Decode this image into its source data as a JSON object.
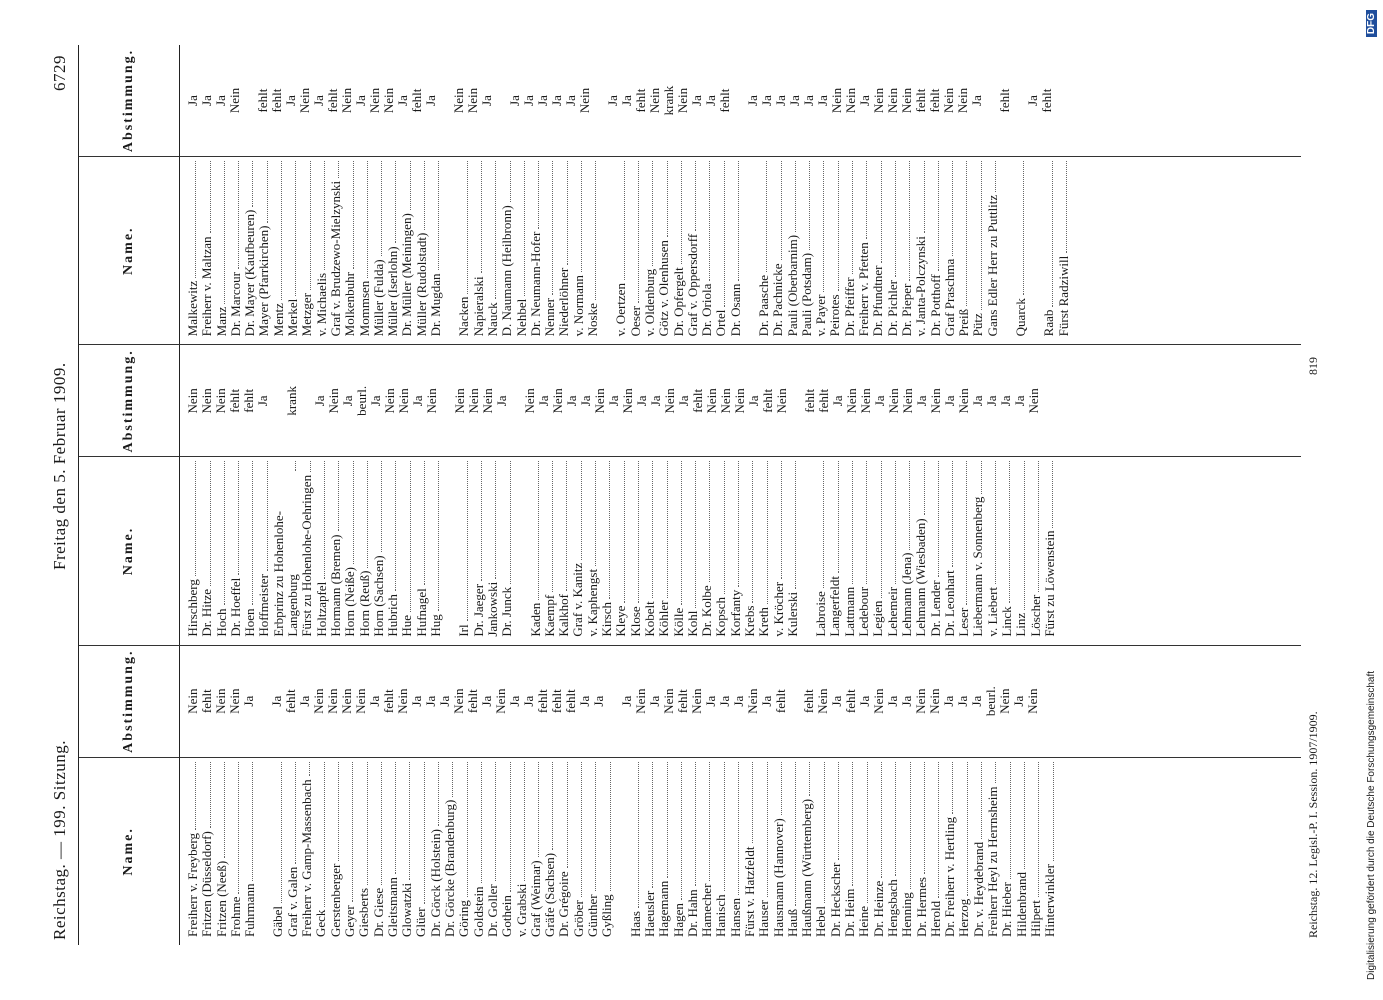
{
  "header": {
    "left": "Reichstag. — 199. Sitzung.",
    "center": "Freitag den 5. Februar 1909.",
    "page": "6729"
  },
  "column_headers": {
    "name": "Name.",
    "vote": "Abstimmung."
  },
  "columns": [
    {
      "groups": [
        {
          "rows": [
            {
              "name": "Freiherr v. Freyberg",
              "vote": "Nein"
            },
            {
              "name": "Fritzen (Düsseldorf)",
              "vote": "fehlt"
            },
            {
              "name": "Fritzen (Neeß)",
              "vote": "Nein"
            },
            {
              "name": "Frohme",
              "vote": "Nein"
            },
            {
              "name": "Fuhrmann",
              "vote": "Ja"
            }
          ]
        },
        {
          "rows": [
            {
              "name": "Gäbel",
              "vote": "Ja"
            },
            {
              "name": "Graf v. Galen",
              "vote": "fehlt"
            },
            {
              "name": "Freiherr v. Gamp-Massenbach",
              "vote": "Ja"
            },
            {
              "name": "Geck",
              "vote": "Nein"
            },
            {
              "name": "Gerstenberger",
              "vote": "Nein"
            },
            {
              "name": "Geyer",
              "vote": "Nein"
            },
            {
              "name": "Giesberts",
              "vote": "Nein"
            },
            {
              "name": "Dr. Giese",
              "vote": "Ja"
            },
            {
              "name": "Gleitsmann",
              "vote": "fehlt"
            },
            {
              "name": "Glowatzki",
              "vote": "Nein"
            },
            {
              "name": "Glüer",
              "vote": "Ja"
            },
            {
              "name": "Dr. Görck (Holstein)",
              "vote": "Ja"
            },
            {
              "name": "Dr. Görcke (Brandenburg)",
              "vote": "Ja"
            },
            {
              "name": "Göring",
              "vote": "Nein"
            },
            {
              "name": "Goldstein",
              "vote": "fehlt"
            },
            {
              "name": "Dr. Goller",
              "vote": "Ja"
            },
            {
              "name": "Gothein",
              "vote": "Nein"
            },
            {
              "name": "v. Grabski",
              "vote": "Ja"
            },
            {
              "name": "Graf (Weimar)",
              "vote": "Ja"
            },
            {
              "name": "Gräfe (Sachsen)",
              "vote": "fehlt"
            },
            {
              "name": "Dr. Grégoire",
              "vote": "fehlt"
            },
            {
              "name": "Gröber",
              "vote": "fehlt"
            },
            {
              "name": "Günther",
              "vote": "Ja"
            },
            {
              "name": "Gyßling",
              "vote": "Ja"
            }
          ]
        },
        {
          "rows": [
            {
              "name": "Haas",
              "vote": "Ja"
            },
            {
              "name": "Haeusler",
              "vote": "Nein"
            },
            {
              "name": "Hagemann",
              "vote": "Ja"
            },
            {
              "name": "Hagen",
              "vote": "Nein"
            },
            {
              "name": "Dr. Hahn",
              "vote": "fehlt"
            },
            {
              "name": "Hamecher",
              "vote": "Nein"
            },
            {
              "name": "Hanisch",
              "vote": "Ja"
            },
            {
              "name": "Hansen",
              "vote": "Ja"
            },
            {
              "name": "Fürst v. Hatzfeldt",
              "vote": "Ja"
            },
            {
              "name": "Hauser",
              "vote": "Nein"
            },
            {
              "name": "Hausmann (Hannover)",
              "vote": "Ja"
            },
            {
              "name": "Hauß",
              "vote": "fehlt"
            },
            {
              "name": "Haußmann (Württemberg)"
            },
            {
              "name": "Hebel",
              "vote": "fehlt"
            },
            {
              "name": "Dr. Heckscher",
              "vote": "Nein"
            },
            {
              "name": "Dr. Heim",
              "vote": "Ja"
            },
            {
              "name": "Heine",
              "vote": "fehlt"
            },
            {
              "name": "Dr. Heinze",
              "vote": "Ja"
            },
            {
              "name": "Hengsbach",
              "vote": "Nein"
            },
            {
              "name": "Henning",
              "vote": "Ja"
            },
            {
              "name": "Dr. Hermes",
              "vote": "Ja"
            },
            {
              "name": "Herold",
              "vote": "Nein"
            },
            {
              "name": "Dr. Freiherr v. Hertling",
              "vote": "Nein"
            },
            {
              "name": "Herzog",
              "vote": "Ja"
            },
            {
              "name": "Dr. v. Heydebrand",
              "vote": "Ja"
            },
            {
              "name": "Freiherr Heyl zu Herrnsheim",
              "vote": "Ja"
            },
            {
              "name": "Dr. Hieber",
              "vote": "beurl."
            },
            {
              "name": "Hildenbrand",
              "vote": "Nein"
            },
            {
              "name": "Hilpert",
              "vote": "Ja"
            },
            {
              "name": "Hinterwinkler",
              "vote": "Nein"
            }
          ]
        }
      ]
    },
    {
      "groups": [
        {
          "rows": [
            {
              "name": "Hirschberg",
              "vote": "Nein"
            },
            {
              "name": "Dr. Hitze",
              "vote": "Nein"
            },
            {
              "name": "Hoch",
              "vote": "Nein"
            },
            {
              "name": "Dr. Hoeffel",
              "vote": "fehlt"
            },
            {
              "name": "Hoen",
              "vote": "fehlt"
            },
            {
              "name": "Hoffmeister",
              "vote": "Ja"
            },
            {
              "name": "Erbprinz zu Hohenlohe-Langenburg",
              "vote": "krank"
            },
            {
              "name": "Fürst zu Hohenlohe-Oehringen"
            },
            {
              "name": "Holtzapfel",
              "vote": "Ja"
            },
            {
              "name": "Hormann (Bremen)",
              "vote": "Nein"
            },
            {
              "name": "Horn (Neiße)",
              "vote": "Ja"
            },
            {
              "name": "Horn (Reuß)",
              "vote": "beurl."
            },
            {
              "name": "Horn (Sachsen)",
              "vote": "Ja"
            },
            {
              "name": "Hubrich",
              "vote": "Nein"
            },
            {
              "name": "Hue",
              "vote": "Nein"
            },
            {
              "name": "Hufnagel",
              "vote": "Ja"
            },
            {
              "name": "Hug",
              "vote": "Nein"
            }
          ]
        },
        {
          "rows": [
            {
              "name": "Irl",
              "vote": "Nein"
            },
            {
              "name": "Dr. Jaeger",
              "vote": "Nein"
            },
            {
              "name": "Jankowski",
              "vote": "Nein"
            },
            {
              "name": "Dr. Junck",
              "vote": "Ja"
            }
          ]
        },
        {
          "rows": [
            {
              "name": "Kaden",
              "vote": "Nein"
            },
            {
              "name": "Kaempf",
              "vote": "Ja"
            },
            {
              "name": "Kalkhof",
              "vote": "Nein"
            },
            {
              "name": "Graf v. Kanitz",
              "vote": "Ja"
            },
            {
              "name": "v. Kaphengst",
              "vote": "Ja"
            },
            {
              "name": "Kirsch",
              "vote": "Nein"
            },
            {
              "name": "Kleye",
              "vote": "Ja"
            },
            {
              "name": "Klose",
              "vote": "Nein"
            },
            {
              "name": "Kobelt",
              "vote": "Ja"
            },
            {
              "name": "Köhler",
              "vote": "Ja"
            },
            {
              "name": "Kölle",
              "vote": "Nein"
            },
            {
              "name": "Kohl",
              "vote": "Ja"
            },
            {
              "name": "Dr. Kolbe",
              "vote": "fehlt"
            },
            {
              "name": "Kopsch",
              "vote": "Nein"
            },
            {
              "name": "Korfanty",
              "vote": "Nein"
            },
            {
              "name": "Krebs",
              "vote": "Nein"
            },
            {
              "name": "Kreth",
              "vote": "Ja"
            },
            {
              "name": "v. Kröcher",
              "vote": "fehlt"
            },
            {
              "name": "Kulerski",
              "vote": "Nein"
            }
          ]
        },
        {
          "rows": [
            {
              "name": "Labroise",
              "vote": "fehlt"
            },
            {
              "name": "Langerfeldt",
              "vote": "fehlt"
            },
            {
              "name": "Lattmann",
              "vote": "Ja"
            },
            {
              "name": "Ledebour",
              "vote": "Nein"
            },
            {
              "name": "Legien",
              "vote": "Nein"
            },
            {
              "name": "Lehemeir",
              "vote": "Ja"
            },
            {
              "name": "Lehmann (Jena)",
              "vote": "Nein"
            },
            {
              "name": "Lehmann (Wiesbaden)",
              "vote": "Nein"
            },
            {
              "name": "Dr. Lender",
              "vote": "Ja"
            },
            {
              "name": "Dr. Leonhart",
              "vote": "Nein"
            },
            {
              "name": "Leser",
              "vote": "Ja"
            },
            {
              "name": "Liebermann v. Sonnenberg",
              "vote": "Nein"
            },
            {
              "name": "v. Liebert",
              "vote": "Ja"
            },
            {
              "name": "Linck",
              "vote": "Ja"
            },
            {
              "name": "Linz",
              "vote": "Ja"
            },
            {
              "name": "Löscher",
              "vote": "Ja"
            },
            {
              "name": "Fürst zu Löwenstein",
              "vote": "Nein"
            }
          ]
        }
      ]
    },
    {
      "groups": [
        {
          "rows": [
            {
              "name": "Malkewitz",
              "vote": "Ja"
            },
            {
              "name": "Freiherr v. Maltzan",
              "vote": "Ja"
            },
            {
              "name": "Manz",
              "vote": "Ja"
            },
            {
              "name": "Dr. Marcour",
              "vote": "Nein"
            },
            {
              "name": "Dr. Mayer (Kaufbeuren)"
            },
            {
              "name": "Mayer (Pfarrkirchen)",
              "vote": "fehlt"
            },
            {
              "name": "Mentz",
              "vote": "fehlt"
            },
            {
              "name": "Merkel",
              "vote": "Ja"
            },
            {
              "name": "Metzger",
              "vote": "Nein"
            },
            {
              "name": "v. Michaelis",
              "vote": "Ja"
            },
            {
              "name": "Graf v. Brudzewo-Mielzynski",
              "vote": "fehlt"
            },
            {
              "name": "Molkenbuhr",
              "vote": "Nein"
            },
            {
              "name": "Mommsen",
              "vote": "Ja"
            },
            {
              "name": "Müller (Fulda)",
              "vote": "Nein"
            },
            {
              "name": "Müller (Iserlohn)",
              "vote": "Nein"
            },
            {
              "name": "Dr. Müller (Meiningen)",
              "vote": "Ja"
            },
            {
              "name": "Müller (Rudolstadt)",
              "vote": "fehlt"
            },
            {
              "name": "Dr. Mugdan",
              "vote": "Ja"
            }
          ]
        },
        {
          "rows": [
            {
              "name": "Nacken",
              "vote": "Nein"
            },
            {
              "name": "Napieralski",
              "vote": "Nein"
            },
            {
              "name": "Nauck",
              "vote": "Ja"
            },
            {
              "name": "D. Naumann (Heilbronn)"
            },
            {
              "name": "Nehbel",
              "vote": "Ja"
            },
            {
              "name": "Dr. Neumann-Hofer",
              "vote": "Ja"
            },
            {
              "name": "Nenner",
              "vote": "Ja"
            },
            {
              "name": "Niederlöhner",
              "vote": "Ja"
            },
            {
              "name": "v. Normann",
              "vote": "Ja"
            },
            {
              "name": "Noske",
              "vote": "Nein"
            }
          ]
        },
        {
          "rows": [
            {
              "name": "v. Oertzen",
              "vote": "Ja"
            },
            {
              "name": "Oeser",
              "vote": "Ja"
            },
            {
              "name": "v. Oldenburg",
              "vote": "fehlt"
            },
            {
              "name": "Götz v. Olenhusen",
              "vote": "Nein"
            },
            {
              "name": "Dr. Opfergelt",
              "vote": "krank"
            },
            {
              "name": "Graf v. Oppersdorff",
              "vote": "Nein"
            },
            {
              "name": "Dr. Oriola",
              "vote": "Ja"
            },
            {
              "name": "Ortel",
              "vote": "Ja"
            },
            {
              "name": "Dr. Osann",
              "vote": "fehlt"
            }
          ]
        },
        {
          "rows": [
            {
              "name": "Dr. Paasche",
              "vote": "Ja"
            },
            {
              "name": "Dr. Pachnicke",
              "vote": "Ja"
            },
            {
              "name": "Pauli (Oberbarnim)",
              "vote": "Ja"
            },
            {
              "name": "Pauli (Potsdam)",
              "vote": "Ja"
            },
            {
              "name": "v. Payer",
              "vote": "Ja"
            },
            {
              "name": "Peirotes",
              "vote": "Ja"
            },
            {
              "name": "Dr. Pfeiffer",
              "vote": "Nein"
            },
            {
              "name": "Freiherr v. Pfetten",
              "vote": "Nein"
            },
            {
              "name": "Dr. Pfundtner",
              "vote": "Ja"
            },
            {
              "name": "Dr. Pichler",
              "vote": "Nein"
            },
            {
              "name": "Dr. Pieper",
              "vote": "Nein"
            },
            {
              "name": "v. Janta-Polczynski",
              "vote": "Nein"
            },
            {
              "name": "Dr. Potthoff",
              "vote": "fehlt"
            },
            {
              "name": "Graf Praschma",
              "vote": "fehlt"
            },
            {
              "name": "Preiß",
              "vote": "Nein"
            },
            {
              "name": "Pütz",
              "vote": "Nein"
            },
            {
              "name": "Gans Edler Herr zu Puttlitz",
              "vote": "Ja"
            }
          ]
        },
        {
          "rows": [
            {
              "name": "Quarck",
              "vote": "fehlt"
            }
          ]
        },
        {
          "rows": [
            {
              "name": "Raab",
              "vote": "Ja"
            },
            {
              "name": "Fürst Radziwill",
              "vote": "fehlt"
            }
          ]
        }
      ]
    }
  ],
  "footer": {
    "left": "Reichstag. 12. Legisl.-P. I. Session. 1907/1909.",
    "page": "819"
  },
  "note": {
    "text": "Digitalisierung gefördert durch die Deutsche Forschungsgemeinschaft",
    "logo": "DFG"
  }
}
